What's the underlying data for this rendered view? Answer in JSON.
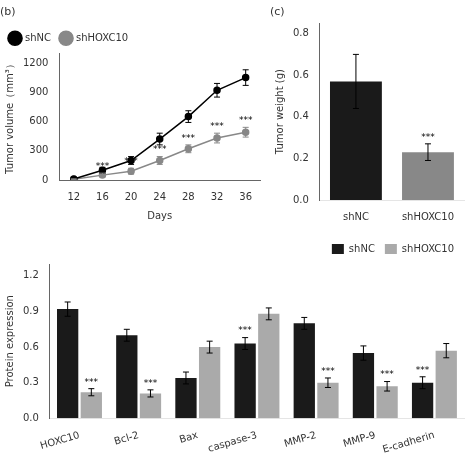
{
  "chart_data": [
    {
      "type": "line",
      "title": "(b)",
      "xlabel": "Days",
      "ylabel": "Tumor volume（mm³）",
      "x": [
        12,
        16,
        20,
        24,
        28,
        32,
        36
      ],
      "series": [
        {
          "name": "shNC",
          "color": "#000000",
          "marker": "circle",
          "values": [
            10,
            100,
            200,
            420,
            650,
            920,
            1050
          ],
          "errors": [
            5,
            30,
            40,
            60,
            60,
            70,
            80
          ]
        },
        {
          "name": "shHOXC10",
          "color": "#888888",
          "marker": "circle",
          "values": [
            8,
            50,
            90,
            200,
            320,
            430,
            490
          ],
          "errors": [
            4,
            20,
            30,
            40,
            40,
            50,
            50
          ]
        }
      ],
      "xlim": [
        10,
        38
      ],
      "xticks": [
        12,
        16,
        20,
        24,
        28,
        32,
        36
      ],
      "ylim": [
        0,
        1300
      ],
      "yticks": [
        0,
        300,
        600,
        900,
        1200
      ],
      "grid": false,
      "legend": "upper left",
      "annotations": [
        {
          "text": "***",
          "x": 16,
          "series": "shHOXC10"
        },
        {
          "text": "***",
          "x": 20,
          "series": "shHOXC10"
        },
        {
          "text": "***",
          "x": 24,
          "series": "shHOXC10"
        },
        {
          "text": "***",
          "x": 28,
          "series": "shHOXC10"
        },
        {
          "text": "***",
          "x": 32,
          "series": "shHOXC10"
        },
        {
          "text": "***",
          "x": 36,
          "series": "shHOXC10"
        }
      ]
    },
    {
      "type": "bar",
      "title": "(c)",
      "ylabel": "Tumor weight (g)",
      "categories": [
        "shNC",
        "shHOXC10"
      ],
      "values": [
        0.57,
        0.23
      ],
      "errors": [
        0.13,
        0.04
      ],
      "colors": [
        "#1a1a1a",
        "#888888"
      ],
      "ylim": [
        0,
        0.85
      ],
      "yticks": [
        {
          "value": 0.0,
          "label": "0.0"
        },
        0.2,
        0.4,
        0.6,
        0.8
      ],
      "grid": false,
      "annotations": [
        {
          "text": "***",
          "category": "shHOXC10"
        }
      ]
    },
    {
      "type": "bar",
      "ylabel": "Protein expression",
      "categories": [
        "HOXC10",
        "Bcl-2",
        "Bax",
        "caspase-3",
        "MMP-2",
        "MMP-9",
        "E-cadherin"
      ],
      "series": [
        {
          "name": "shNC",
          "color": "#1a1a1a",
          "values": [
            0.92,
            0.7,
            0.34,
            0.63,
            0.8,
            0.55,
            0.3
          ],
          "errors": [
            0.06,
            0.05,
            0.05,
            0.05,
            0.05,
            0.06,
            0.05
          ]
        },
        {
          "name": "shHOXC10",
          "color": "#aaaaaa",
          "values": [
            0.22,
            0.21,
            0.6,
            0.88,
            0.3,
            0.27,
            0.57
          ],
          "errors": [
            0.03,
            0.03,
            0.05,
            0.05,
            0.04,
            0.04,
            0.06
          ]
        }
      ],
      "ylim": [
        0,
        1.3
      ],
      "yticks": [
        {
          "value": 0.0,
          "label": "0.0"
        },
        0.3,
        0.6,
        0.9,
        1.2
      ],
      "grid": false,
      "legend": "upper right",
      "annotations": [
        {
          "text": "***",
          "category": "HOXC10",
          "series": "shHOXC10"
        },
        {
          "text": "***",
          "category": "Bcl-2",
          "series": "shHOXC10"
        },
        {
          "text": "***",
          "category": "caspase-3",
          "series": "shNC"
        },
        {
          "text": "***",
          "category": "MMP-2",
          "series": "shHOXC10"
        },
        {
          "text": "***",
          "category": "MMP-9",
          "series": "shHOXC10"
        },
        {
          "text": "***",
          "category": "E-cadherin",
          "series": "shNC"
        }
      ]
    }
  ]
}
